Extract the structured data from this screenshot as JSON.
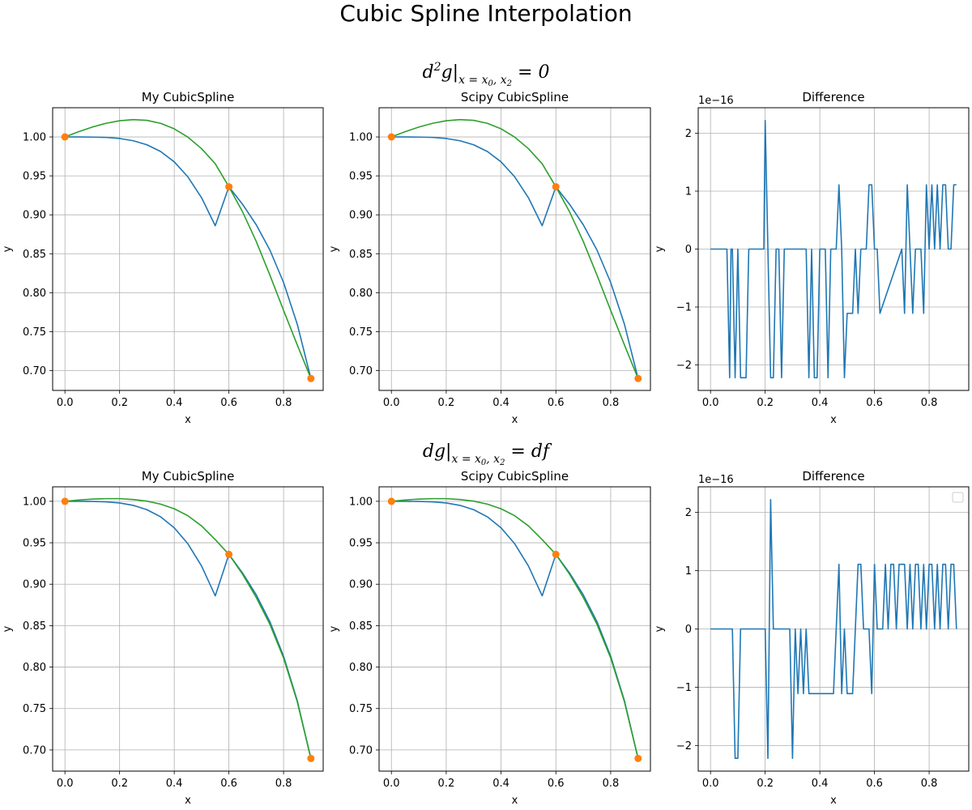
{
  "figure": {
    "title": "Cubic Spline Interpolation",
    "rows": [
      {
        "title_main": "d",
        "title_sup": "2",
        "title_main2": "g|",
        "title_sub": "x = x",
        "title_sub0": "0",
        "title_sub_rest": ", x",
        "title_sub2": "2",
        "title_rest": " = 0"
      },
      {
        "title_main": "dg|",
        "title_sub": "x = x",
        "title_sub0": "0",
        "title_sub_rest": ", x",
        "title_sub2": "2",
        "title_rest": " = df"
      }
    ]
  },
  "colors": {
    "blue": "#1f77b4",
    "orange": "#ff7f0e",
    "green": "#2ca02c",
    "grid": "#b0b0b0"
  },
  "chart_data": [
    {
      "type": "line",
      "title": "My CubicSpline",
      "xlabel": "x",
      "ylabel": "y",
      "xlim": [
        -0.045,
        0.945
      ],
      "ylim": [
        0.6745,
        1.0375
      ],
      "xticks": [
        0.0,
        0.2,
        0.4,
        0.6,
        0.8
      ],
      "xticklabels": [
        "0.0",
        "0.2",
        "0.4",
        "0.6",
        "0.8"
      ],
      "yticks": [
        0.7,
        0.75,
        0.8,
        0.85,
        0.9,
        0.95,
        1.0
      ],
      "yticklabels": [
        "0.70",
        "0.75",
        "0.80",
        "0.85",
        "0.90",
        "0.95",
        "1.00"
      ],
      "grid": true,
      "series": [
        {
          "color": "blue",
          "x": [
            0.0,
            0.05,
            0.1,
            0.15,
            0.2,
            0.25,
            0.3,
            0.35,
            0.4,
            0.45,
            0.5,
            0.55,
            0.6,
            0.65,
            0.7,
            0.75,
            0.8,
            0.85,
            0.9
          ],
          "y": [
            1.0,
            1.0,
            0.9998,
            0.9994,
            0.998,
            0.9951,
            0.9899,
            0.9813,
            0.968,
            0.9487,
            0.9219,
            0.886,
            0.936,
            0.9135,
            0.8872,
            0.8547,
            0.8131,
            0.7597,
            0.6898
          ]
        },
        {
          "color": "green",
          "x": [
            0.0,
            0.05,
            0.1,
            0.15,
            0.2,
            0.25,
            0.3,
            0.35,
            0.4,
            0.45,
            0.5,
            0.55,
            0.6,
            0.65,
            0.7,
            0.75,
            0.8,
            0.85,
            0.9
          ],
          "y": [
            1.0,
            1.0067,
            1.0127,
            1.0175,
            1.0208,
            1.0222,
            1.0213,
            1.0175,
            1.0104,
            0.9997,
            0.9849,
            0.9655,
            0.936,
            0.9038,
            0.8658,
            0.8225,
            0.7773,
            0.7331,
            0.6898
          ]
        }
      ],
      "points": {
        "color": "orange",
        "x": [
          0.0,
          0.6,
          0.9
        ],
        "y": [
          1.0,
          0.936,
          0.6898
        ]
      }
    },
    {
      "type": "line",
      "title": "Scipy CubicSpline",
      "xlabel": "x",
      "ylabel": "y",
      "xlim": [
        -0.045,
        0.945
      ],
      "ylim": [
        0.6745,
        1.0375
      ],
      "xticks": [
        0.0,
        0.2,
        0.4,
        0.6,
        0.8
      ],
      "xticklabels": [
        "0.0",
        "0.2",
        "0.4",
        "0.6",
        "0.8"
      ],
      "yticks": [
        0.7,
        0.75,
        0.8,
        0.85,
        0.9,
        0.95,
        1.0
      ],
      "yticklabels": [
        "0.70",
        "0.75",
        "0.80",
        "0.85",
        "0.90",
        "0.95",
        "1.00"
      ],
      "grid": true,
      "series": [
        {
          "color": "blue",
          "x": [
            0.0,
            0.05,
            0.1,
            0.15,
            0.2,
            0.25,
            0.3,
            0.35,
            0.4,
            0.45,
            0.5,
            0.55,
            0.6,
            0.65,
            0.7,
            0.75,
            0.8,
            0.85,
            0.9
          ],
          "y": [
            1.0,
            1.0,
            0.9998,
            0.9994,
            0.998,
            0.9951,
            0.9899,
            0.9813,
            0.968,
            0.9487,
            0.9219,
            0.886,
            0.936,
            0.9135,
            0.8872,
            0.8547,
            0.8131,
            0.7597,
            0.6898
          ]
        },
        {
          "color": "green",
          "x": [
            0.0,
            0.05,
            0.1,
            0.15,
            0.2,
            0.25,
            0.3,
            0.35,
            0.4,
            0.45,
            0.5,
            0.55,
            0.6,
            0.65,
            0.7,
            0.75,
            0.8,
            0.85,
            0.9
          ],
          "y": [
            1.0,
            1.0067,
            1.0127,
            1.0175,
            1.0208,
            1.0222,
            1.0213,
            1.0175,
            1.0104,
            0.9997,
            0.9849,
            0.9655,
            0.936,
            0.9038,
            0.8658,
            0.8225,
            0.7773,
            0.7331,
            0.6898
          ]
        }
      ],
      "points": {
        "color": "orange",
        "x": [
          0.0,
          0.6,
          0.9
        ],
        "y": [
          1.0,
          0.936,
          0.6898
        ]
      }
    },
    {
      "type": "line",
      "title": "Difference",
      "xlabel": "x",
      "ylabel": "y",
      "offset_text": "1e−16",
      "xlim": [
        -0.045,
        0.945
      ],
      "ylim": [
        -2.44,
        2.44
      ],
      "xticks": [
        0.0,
        0.2,
        0.4,
        0.6,
        0.8
      ],
      "xticklabels": [
        "0.0",
        "0.2",
        "0.4",
        "0.6",
        "0.8"
      ],
      "yticks": [
        -2,
        -1,
        0,
        1,
        2
      ],
      "yticklabels": [
        "−2",
        "−1",
        "0",
        "1",
        "2"
      ],
      "grid": true,
      "series": [
        {
          "color": "blue",
          "x": [
            0.0,
            0.06,
            0.07,
            0.075,
            0.08,
            0.09,
            0.1,
            0.11,
            0.12,
            0.13,
            0.14,
            0.15,
            0.16,
            0.17,
            0.18,
            0.195,
            0.2,
            0.21,
            0.22,
            0.23,
            0.24,
            0.25,
            0.26,
            0.27,
            0.35,
            0.36,
            0.37,
            0.38,
            0.39,
            0.4,
            0.41,
            0.42,
            0.43,
            0.44,
            0.45,
            0.46,
            0.47,
            0.48,
            0.49,
            0.5,
            0.51,
            0.52,
            0.53,
            0.54,
            0.55,
            0.56,
            0.57,
            0.58,
            0.59,
            0.6,
            0.61,
            0.62,
            0.7,
            0.71,
            0.72,
            0.73,
            0.74,
            0.75,
            0.76,
            0.77,
            0.78,
            0.79,
            0.8,
            0.81,
            0.82,
            0.83,
            0.84,
            0.85,
            0.86,
            0.87,
            0.88,
            0.89,
            0.9
          ],
          "y": [
            0,
            0,
            -2.22,
            0,
            0,
            -2.22,
            0,
            -2.22,
            -2.22,
            -2.22,
            0,
            0,
            0,
            0,
            0,
            0,
            2.22,
            0,
            -2.22,
            -2.22,
            0,
            0,
            -2.22,
            0,
            0,
            -2.22,
            0,
            -2.22,
            -2.22,
            0,
            0,
            0,
            -2.22,
            0,
            0,
            0,
            1.11,
            0,
            -2.22,
            -1.11,
            -1.11,
            -1.11,
            0,
            -1.11,
            0,
            0,
            0,
            1.11,
            1.11,
            0,
            0,
            -1.11,
            0,
            -1.11,
            1.11,
            0,
            -1.11,
            0,
            0,
            0,
            -1.11,
            1.11,
            0,
            1.11,
            0,
            1.11,
            0,
            1.11,
            1.11,
            0,
            0,
            1.11,
            1.11
          ]
        }
      ]
    },
    {
      "type": "line",
      "title": "My CubicSpline",
      "xlabel": "x",
      "ylabel": "y",
      "xlim": [
        -0.045,
        0.945
      ],
      "ylim": [
        0.6745,
        1.0175
      ],
      "xticks": [
        0.0,
        0.2,
        0.4,
        0.6,
        0.8
      ],
      "xticklabels": [
        "0.0",
        "0.2",
        "0.4",
        "0.6",
        "0.8"
      ],
      "yticks": [
        0.7,
        0.75,
        0.8,
        0.85,
        0.9,
        0.95,
        1.0
      ],
      "yticklabels": [
        "0.70",
        "0.75",
        "0.80",
        "0.85",
        "0.90",
        "0.95",
        "1.00"
      ],
      "grid": true,
      "series": [
        {
          "color": "blue",
          "x": [
            0.0,
            0.05,
            0.1,
            0.15,
            0.2,
            0.25,
            0.3,
            0.35,
            0.4,
            0.45,
            0.5,
            0.55,
            0.6,
            0.65,
            0.7,
            0.75,
            0.8,
            0.85,
            0.9
          ],
          "y": [
            1.0,
            1.0,
            0.9998,
            0.9994,
            0.998,
            0.9951,
            0.9899,
            0.9813,
            0.968,
            0.9487,
            0.9219,
            0.886,
            0.936,
            0.9135,
            0.8872,
            0.8547,
            0.8131,
            0.7597,
            0.6898
          ]
        },
        {
          "color": "green",
          "x": [
            0.0,
            0.05,
            0.1,
            0.15,
            0.2,
            0.25,
            0.3,
            0.35,
            0.4,
            0.45,
            0.5,
            0.55,
            0.6,
            0.65,
            0.7,
            0.75,
            0.8,
            0.85,
            0.9
          ],
          "y": [
            1.0,
            1.0016,
            1.0027,
            1.0032,
            1.0032,
            1.0022,
            1.0002,
            0.9966,
            0.991,
            0.9826,
            0.9703,
            0.9538,
            0.936,
            0.912,
            0.884,
            0.8516,
            0.811,
            0.7584,
            0.6898
          ]
        }
      ],
      "points": {
        "color": "orange",
        "x": [
          0.0,
          0.6,
          0.9
        ],
        "y": [
          1.0,
          0.936,
          0.6898
        ]
      }
    },
    {
      "type": "line",
      "title": "Scipy CubicSpline",
      "xlabel": "x",
      "ylabel": "y",
      "xlim": [
        -0.045,
        0.945
      ],
      "ylim": [
        0.6745,
        1.0175
      ],
      "xticks": [
        0.0,
        0.2,
        0.4,
        0.6,
        0.8
      ],
      "xticklabels": [
        "0.0",
        "0.2",
        "0.4",
        "0.6",
        "0.8"
      ],
      "yticks": [
        0.7,
        0.75,
        0.8,
        0.85,
        0.9,
        0.95,
        1.0
      ],
      "yticklabels": [
        "0.70",
        "0.75",
        "0.80",
        "0.85",
        "0.90",
        "0.95",
        "1.00"
      ],
      "grid": true,
      "series": [
        {
          "color": "blue",
          "x": [
            0.0,
            0.05,
            0.1,
            0.15,
            0.2,
            0.25,
            0.3,
            0.35,
            0.4,
            0.45,
            0.5,
            0.55,
            0.6,
            0.65,
            0.7,
            0.75,
            0.8,
            0.85,
            0.9
          ],
          "y": [
            1.0,
            1.0,
            0.9998,
            0.9994,
            0.998,
            0.9951,
            0.9899,
            0.9813,
            0.968,
            0.9487,
            0.9219,
            0.886,
            0.936,
            0.9135,
            0.8872,
            0.8547,
            0.8131,
            0.7597,
            0.6898
          ]
        },
        {
          "color": "green",
          "x": [
            0.0,
            0.05,
            0.1,
            0.15,
            0.2,
            0.25,
            0.3,
            0.35,
            0.4,
            0.45,
            0.5,
            0.55,
            0.6,
            0.65,
            0.7,
            0.75,
            0.8,
            0.85,
            0.9
          ],
          "y": [
            1.0,
            1.0016,
            1.0027,
            1.0032,
            1.0032,
            1.0022,
            1.0002,
            0.9966,
            0.991,
            0.9826,
            0.9703,
            0.9538,
            0.936,
            0.912,
            0.884,
            0.8516,
            0.811,
            0.7584,
            0.6898
          ]
        }
      ],
      "points": {
        "color": "orange",
        "x": [
          0.0,
          0.6,
          0.9
        ],
        "y": [
          1.0,
          0.936,
          0.6898
        ]
      }
    },
    {
      "type": "line",
      "title": "Difference",
      "xlabel": "x",
      "ylabel": "y",
      "offset_text": "1e−16",
      "legend": "top-right (empty)",
      "xlim": [
        -0.045,
        0.945
      ],
      "ylim": [
        -2.44,
        2.44
      ],
      "xticks": [
        0.0,
        0.2,
        0.4,
        0.6,
        0.8
      ],
      "xticklabels": [
        "0.0",
        "0.2",
        "0.4",
        "0.6",
        "0.8"
      ],
      "yticks": [
        -2,
        -1,
        0,
        1,
        2
      ],
      "yticklabels": [
        "−2",
        "−1",
        "0",
        "1",
        "2"
      ],
      "grid": true,
      "series": [
        {
          "color": "blue",
          "x": [
            0.0,
            0.08,
            0.09,
            0.1,
            0.11,
            0.2,
            0.21,
            0.22,
            0.23,
            0.25,
            0.27,
            0.29,
            0.3,
            0.31,
            0.32,
            0.33,
            0.34,
            0.35,
            0.36,
            0.37,
            0.38,
            0.45,
            0.46,
            0.47,
            0.48,
            0.49,
            0.5,
            0.52,
            0.53,
            0.54,
            0.55,
            0.56,
            0.58,
            0.59,
            0.6,
            0.61,
            0.63,
            0.64,
            0.65,
            0.66,
            0.67,
            0.68,
            0.69,
            0.7,
            0.71,
            0.72,
            0.73,
            0.74,
            0.75,
            0.76,
            0.77,
            0.78,
            0.79,
            0.8,
            0.81,
            0.82,
            0.83,
            0.84,
            0.85,
            0.86,
            0.87,
            0.88,
            0.89,
            0.9
          ],
          "y": [
            0,
            0,
            -2.22,
            -2.22,
            0,
            0,
            -2.22,
            2.22,
            0,
            0,
            0,
            0,
            -2.22,
            0,
            -1.11,
            0,
            -1.11,
            0,
            -1.11,
            -1.11,
            -1.11,
            -1.11,
            0,
            1.11,
            -1.11,
            0,
            -1.11,
            -1.11,
            0,
            1.11,
            1.11,
            0,
            0,
            -1.11,
            1.11,
            0,
            0,
            1.11,
            0,
            1.11,
            1.11,
            0,
            1.11,
            1.11,
            1.11,
            0,
            1.11,
            0,
            1.11,
            1.11,
            0,
            1.11,
            0,
            1.11,
            1.11,
            0,
            1.11,
            0,
            1.11,
            1.11,
            0,
            1.11,
            1.11,
            0
          ]
        }
      ]
    }
  ]
}
